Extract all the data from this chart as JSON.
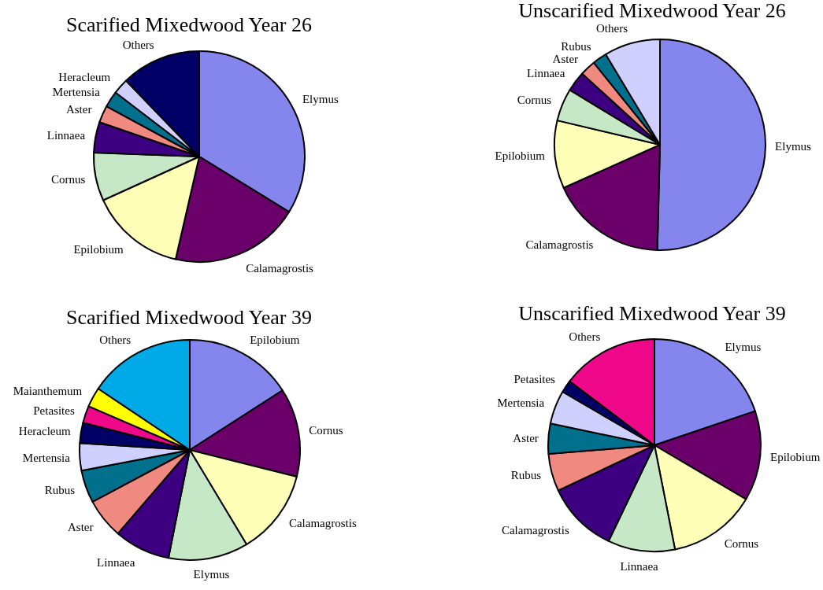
{
  "chart_data": [
    {
      "type": "pie",
      "title": "Scarified Mixedwood Year 26",
      "categories": [
        "Elymus",
        "Calamagrostis",
        "Epilobium",
        "Cornus",
        "Linnaea",
        "Aster",
        "Mertensia",
        "Heracleum",
        "Others"
      ],
      "values": [
        33.8,
        19.8,
        14.6,
        7.4,
        4.7,
        2.6,
        2.5,
        2.4,
        12.2
      ],
      "colors": [
        "#8585ee",
        "#6b006b",
        "#ffffb8",
        "#c6e8c6",
        "#3d0080",
        "#f08a80",
        "#00708c",
        "#d0d0ff",
        "#000066"
      ]
    },
    {
      "type": "pie",
      "title": "Unscarified Mixedwood Year 26",
      "categories": [
        "Elymus",
        "Calamagrostis",
        "Epilobium",
        "Cornus",
        "Linnaea",
        "Aster",
        "Rubus",
        "Others"
      ],
      "values": [
        50.4,
        17.9,
        10.4,
        5.0,
        3.1,
        2.4,
        2.2,
        8.6
      ],
      "colors": [
        "#8585ee",
        "#6b006b",
        "#ffffb8",
        "#c6e8c6",
        "#3d0080",
        "#f08a80",
        "#00708c",
        "#d0d0ff"
      ]
    },
    {
      "type": "pie",
      "title": "Scarified Mixedwood Year 39",
      "categories": [
        "Epilobium",
        "Cornus",
        "Calamagrostis",
        "Elymus",
        "Linnaea",
        "Aster",
        "Rubus",
        "Mertensia",
        "Heracleum",
        "Petasites",
        "Maianthemum",
        "Others"
      ],
      "values": [
        15.9,
        13.0,
        12.5,
        11.7,
        8.2,
        5.9,
        4.8,
        4.0,
        3.0,
        2.5,
        2.9,
        15.6
      ],
      "colors": [
        "#8585ee",
        "#6b006b",
        "#ffffb8",
        "#c6e8c6",
        "#3d0080",
        "#f08a80",
        "#00708c",
        "#d0d0ff",
        "#000066",
        "#f0088a",
        "#ffff00",
        "#00aae6"
      ]
    },
    {
      "type": "pie",
      "title": "Unscarified Mixedwood Year 39",
      "categories": [
        "Elymus",
        "Epilobium",
        "Cornus",
        "Linnaea",
        "Calamagrostis",
        "Rubus",
        "Aster",
        "Mertensia",
        "Petasites",
        "Others"
      ],
      "values": [
        19.8,
        13.7,
        13.4,
        10.2,
        10.9,
        5.7,
        4.6,
        5.1,
        1.9,
        14.7
      ],
      "colors": [
        "#8585ee",
        "#6b006b",
        "#ffffb8",
        "#c6e8c6",
        "#3d0080",
        "#f08a80",
        "#00708c",
        "#d0d0ff",
        "#000066",
        "#f0088a"
      ]
    }
  ]
}
